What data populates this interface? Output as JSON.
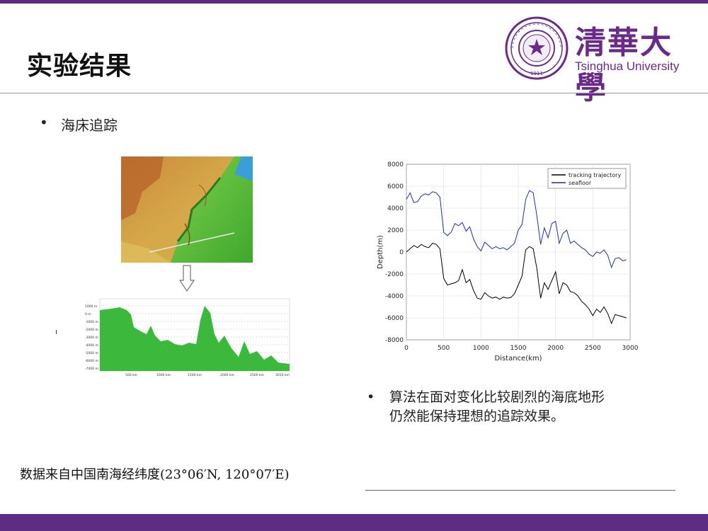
{
  "slide": {
    "title": "实验结果",
    "bullet1": "海床追踪",
    "desc_line1": "算法在面对变化比较剧烈的海底地形",
    "desc_line2": "仍然能保持理想的追踪效果。",
    "footnote": "数据来自中国南海经纬度(23°06′N, 120°07′E)",
    "bullet_glyph": "•"
  },
  "logo": {
    "cn_name": "清華大學",
    "en_name": "Tsinghua University",
    "seal_year": "1911"
  },
  "colors": {
    "accent": "#5c2d83",
    "tracking": "#000000",
    "seafloor": "#1f2fa8"
  },
  "profile_labels": {
    "left_ticks": [
      "1000 m",
      "0 m",
      "-1000 m",
      "-2000 m",
      "-3000 m",
      "-4000 m",
      "-5000 m",
      "-6000 m",
      "-7000 m"
    ],
    "bottom_ticks": [
      "500 km",
      "1000 km",
      "1500 km",
      "2000 km",
      "2500 km",
      "3010 km"
    ]
  },
  "chart_data": {
    "type": "line",
    "title": "",
    "xlabel": "Distance(km)",
    "ylabel": "Depth(m)",
    "xlim": [
      0,
      3000
    ],
    "ylim": [
      -8000,
      8000
    ],
    "xticks": [
      0,
      500,
      1000,
      1500,
      2000,
      2500,
      3000
    ],
    "yticks": [
      -8000,
      -6000,
      -4000,
      -2000,
      0,
      2000,
      4000,
      6000,
      8000
    ],
    "grid": true,
    "legend_position": "top-right",
    "series": [
      {
        "name": "tracking trajectory",
        "color": "#000000",
        "x": [
          0,
          50,
          100,
          150,
          200,
          250,
          300,
          350,
          400,
          450,
          500,
          550,
          600,
          650,
          700,
          750,
          800,
          850,
          900,
          950,
          1000,
          1050,
          1100,
          1150,
          1200,
          1250,
          1300,
          1350,
          1400,
          1450,
          1500,
          1550,
          1600,
          1650,
          1700,
          1750,
          1800,
          1850,
          1900,
          1950,
          2000,
          2050,
          2100,
          2150,
          2200,
          2250,
          2300,
          2350,
          2400,
          2450,
          2500,
          2550,
          2600,
          2650,
          2700,
          2750,
          2800,
          2850,
          2900,
          2950
        ],
        "y": [
          0,
          300,
          600,
          400,
          700,
          500,
          400,
          800,
          700,
          300,
          -2400,
          -3000,
          -2900,
          -2800,
          -2600,
          -1600,
          -2800,
          -2500,
          -3500,
          -4200,
          -4300,
          -3700,
          -4000,
          -4200,
          -4100,
          -4300,
          -4100,
          -4200,
          -4150,
          -3800,
          -3000,
          -2200,
          200,
          500,
          300,
          -1500,
          -4200,
          -2800,
          -3400,
          -2600,
          -1800,
          -3800,
          -2800,
          -3000,
          -3600,
          -3700,
          -4000,
          -4500,
          -4800,
          -5200,
          -5800,
          -5200,
          -5500,
          -5000,
          -5600,
          -6500,
          -5700,
          -5800,
          -5900,
          -6000
        ]
      },
      {
        "name": "seafloor",
        "color": "#1f2fa8",
        "x": [
          0,
          50,
          100,
          150,
          200,
          250,
          300,
          350,
          400,
          450,
          500,
          550,
          600,
          650,
          700,
          750,
          800,
          850,
          900,
          950,
          1000,
          1050,
          1100,
          1150,
          1200,
          1250,
          1300,
          1350,
          1400,
          1450,
          1500,
          1550,
          1600,
          1650,
          1700,
          1750,
          1800,
          1850,
          1900,
          1950,
          2000,
          2050,
          2100,
          2150,
          2200,
          2250,
          2300,
          2350,
          2400,
          2450,
          2500,
          2550,
          2600,
          2650,
          2700,
          2750,
          2800,
          2850,
          2900,
          2950
        ],
        "y": [
          4800,
          5400,
          4500,
          4600,
          5100,
          5300,
          5200,
          5500,
          5400,
          5000,
          1800,
          1500,
          1800,
          2600,
          2400,
          2700,
          1900,
          2300,
          1200,
          500,
          100,
          900,
          600,
          300,
          500,
          300,
          400,
          200,
          500,
          800,
          2000,
          2500,
          4800,
          5600,
          5400,
          3300,
          700,
          2200,
          1300,
          2600,
          2800,
          800,
          1700,
          2000,
          800,
          1000,
          700,
          400,
          200,
          -200,
          -400,
          0,
          -100,
          200,
          -300,
          -1400,
          -600,
          -500,
          -800,
          -700
        ]
      }
    ]
  }
}
